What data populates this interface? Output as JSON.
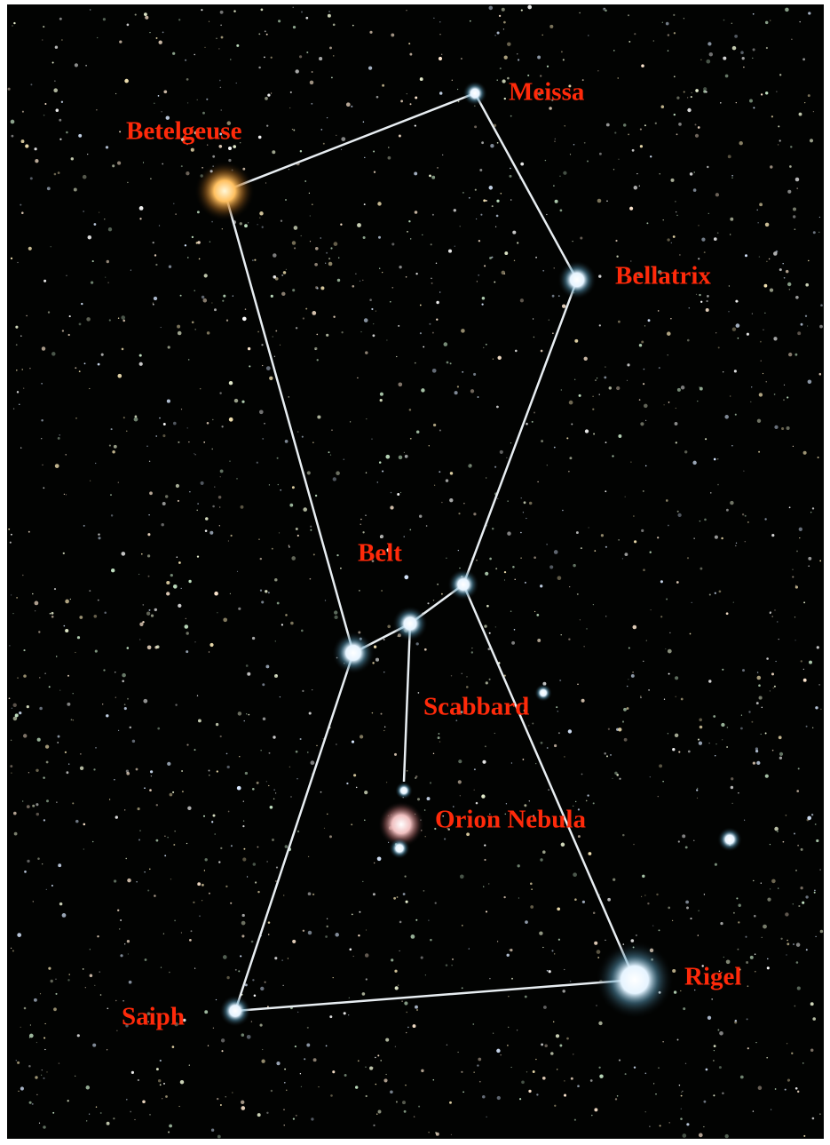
{
  "labels": {
    "meissa": "Meissa",
    "betelgeuse": "Betelgeuse",
    "bellatrix": "Bellatrix",
    "belt": "Belt",
    "scabbard": "Scabbard",
    "nebula": "Orion Nebula",
    "rigel": "Rigel",
    "saiph": "Saiph"
  }
}
